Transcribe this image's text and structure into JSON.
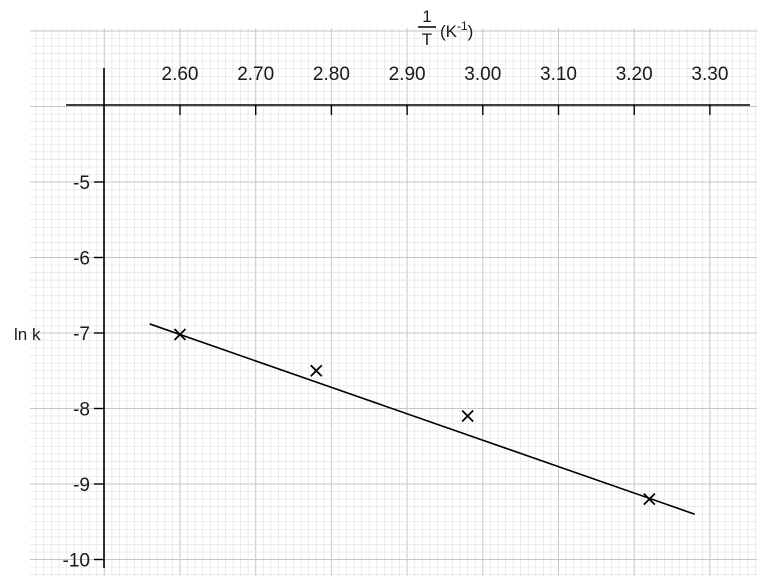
{
  "chart_data": {
    "type": "scatter",
    "xlabel": {
      "fraction_numerator": "1",
      "fraction_denominator": "T",
      "unit_open": "(K",
      "unit_exponent": "-1",
      "unit_close": ")"
    },
    "ylabel": "ln k",
    "x_ticks": [
      "2.60",
      "2.70",
      "2.80",
      "2.90",
      "3.00",
      "3.10",
      "3.20",
      "3.30"
    ],
    "y_ticks": [
      "-5",
      "-6",
      "-7",
      "-8",
      "-9",
      "-10"
    ],
    "xlim": [
      2.5,
      3.35
    ],
    "ylim": [
      -10.2,
      -3.9
    ],
    "grid": true,
    "points": [
      {
        "x": 2.6,
        "y": -7.02
      },
      {
        "x": 2.78,
        "y": -7.5
      },
      {
        "x": 2.98,
        "y": -8.1
      },
      {
        "x": 3.22,
        "y": -9.2
      }
    ],
    "best_fit_line": {
      "x": [
        2.56,
        3.28
      ],
      "y": [
        -6.88,
        -9.4
      ]
    },
    "colors": {
      "grid_minor": "#e4e4e4",
      "grid_major": "#c6c6c6",
      "ink": "#000000"
    }
  }
}
